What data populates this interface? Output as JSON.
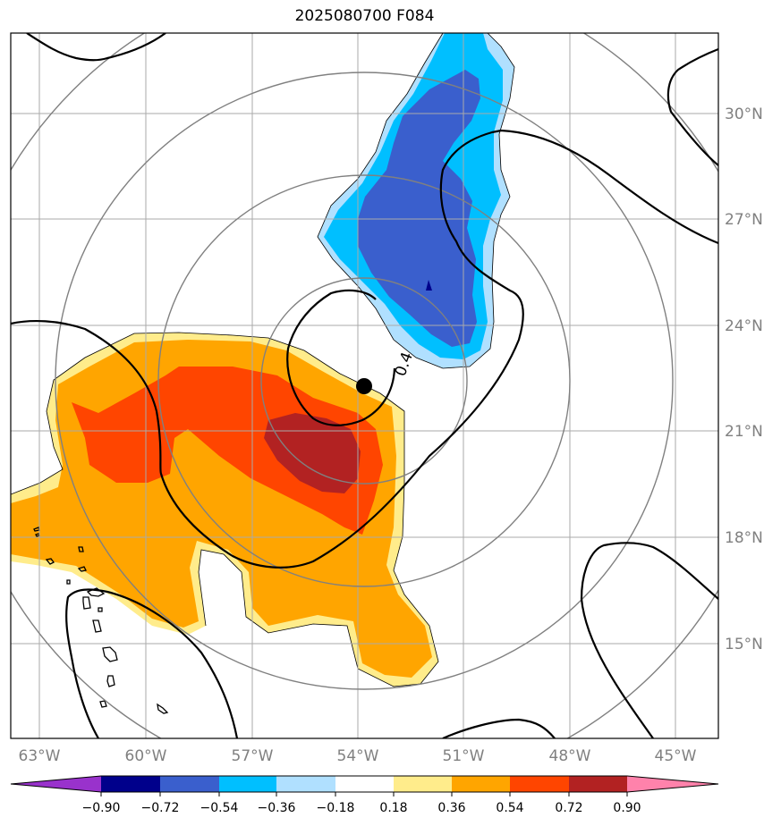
{
  "title": "2025080700 F084",
  "map": {
    "lon_labels": [
      "63°W",
      "60°W",
      "57°W",
      "54°W",
      "51°W",
      "48°W",
      "45°W"
    ],
    "lat_labels": [
      "30°N",
      "27°N",
      "24°N",
      "21°N",
      "18°N",
      "15°N"
    ],
    "contour_label": "0.4",
    "storm_marker": "storm-center",
    "colors": {
      "grid": "#aaaaaa",
      "range_rings": "#808080",
      "contour": "#000000",
      "fill_levels": [
        "#9932cc",
        "#00008b",
        "#3a5fcd",
        "#00bfff",
        "#b0e0ff",
        "#ffffff",
        "#ffec8b",
        "#ffa500",
        "#ff4500",
        "#b22222",
        "#ff82ab"
      ]
    }
  },
  "colorbar": {
    "ticks": [
      "−0.90",
      "−0.72",
      "−0.54",
      "−0.36",
      "−0.18",
      "0.18",
      "0.36",
      "0.54",
      "0.72",
      "0.90"
    ]
  }
}
